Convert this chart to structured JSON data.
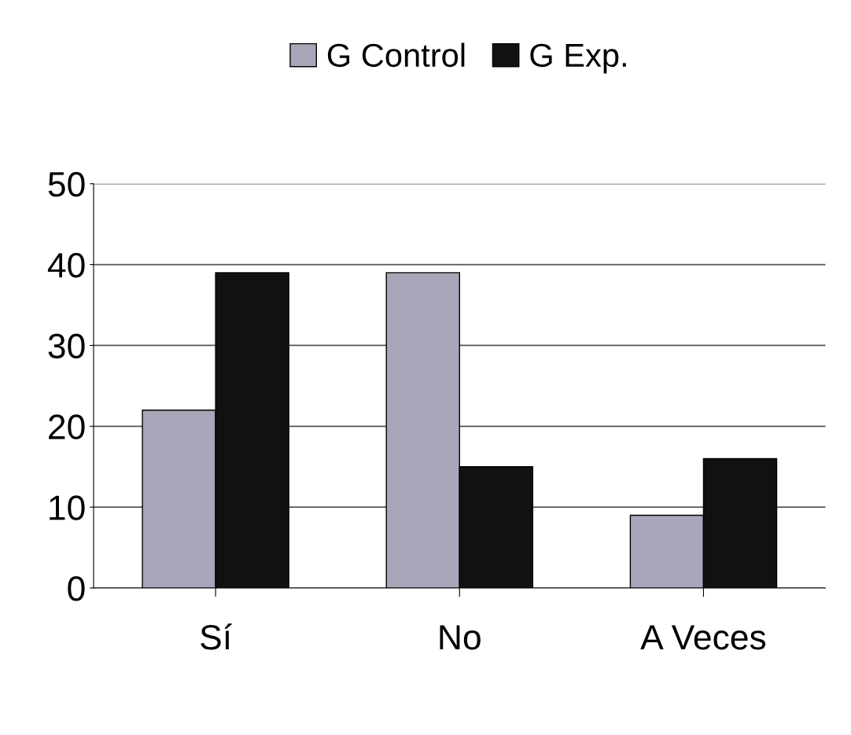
{
  "chart_data": {
    "type": "bar",
    "categories": [
      "Sí",
      "No",
      "A Veces"
    ],
    "series": [
      {
        "name": "G Control",
        "color": "#a8a6b8",
        "values": [
          22,
          39,
          9
        ]
      },
      {
        "name": "G Exp.",
        "color": "#111111",
        "values": [
          39,
          15,
          16
        ]
      }
    ],
    "ylim": [
      0,
      50
    ],
    "yticks": [
      0,
      10,
      20,
      30,
      40,
      50
    ],
    "grid": "y",
    "legend": "top"
  }
}
